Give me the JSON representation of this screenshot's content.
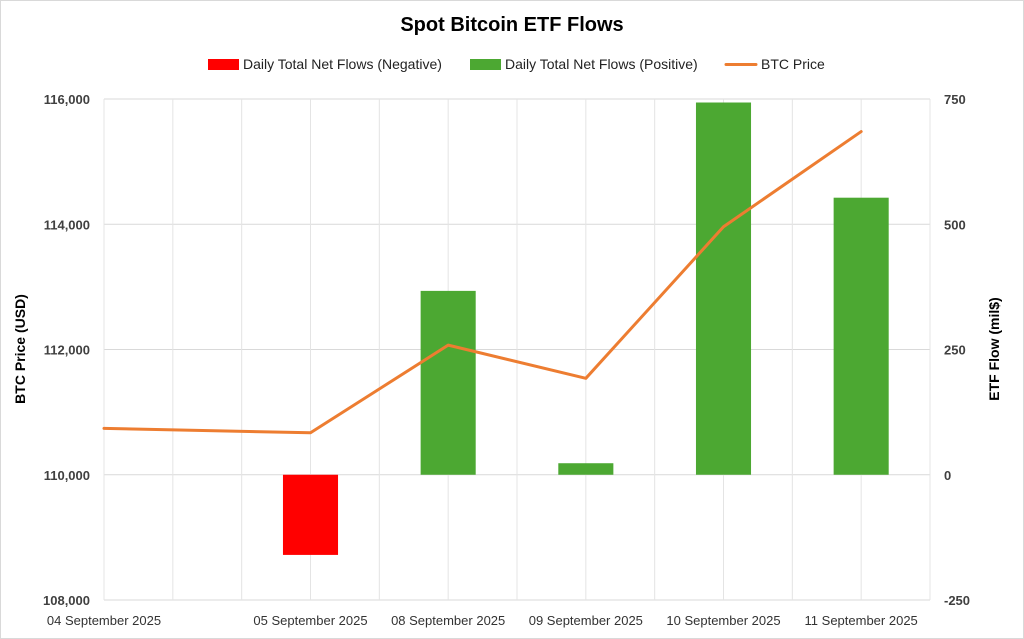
{
  "chart_data": {
    "type": "bar",
    "title": "Spot Bitcoin ETF Flows",
    "categories": [
      "04 September 2025",
      "05 September 2025",
      "08 September 2025",
      "09 September 2025",
      "10 September 2025",
      "11 September 2025"
    ],
    "series": [
      {
        "name": "Daily Total Net Flows (Negative)",
        "kind": "bar",
        "axis": "right",
        "color": "#ff0000",
        "values": [
          0,
          -160,
          0,
          0,
          0,
          0
        ]
      },
      {
        "name": "Daily Total Net Flows (Positive)",
        "kind": "bar",
        "axis": "right",
        "color": "#4ca832",
        "values": [
          0,
          0,
          367,
          23,
          743,
          553
        ]
      },
      {
        "name": "BTC Price",
        "kind": "line",
        "axis": "left",
        "color": "#ed7d31",
        "values": [
          110740,
          110670,
          112070,
          111540,
          113960,
          115480
        ]
      }
    ],
    "y_left": {
      "label": "BTC Price (USD)",
      "range": [
        108000,
        116000
      ],
      "ticks": [
        108000,
        110000,
        112000,
        114000,
        116000
      ],
      "tick_labels": [
        "108,000",
        "110,000",
        "112,000",
        "114,000",
        "116,000"
      ]
    },
    "y_right": {
      "label": "ETF Flow (mil$)",
      "range": [
        -250,
        750
      ],
      "ticks": [
        -250,
        0,
        250,
        500,
        750
      ],
      "tick_labels": [
        "-250",
        "0",
        "250",
        "500",
        "750"
      ]
    },
    "legend_position": "top",
    "grid": true
  }
}
